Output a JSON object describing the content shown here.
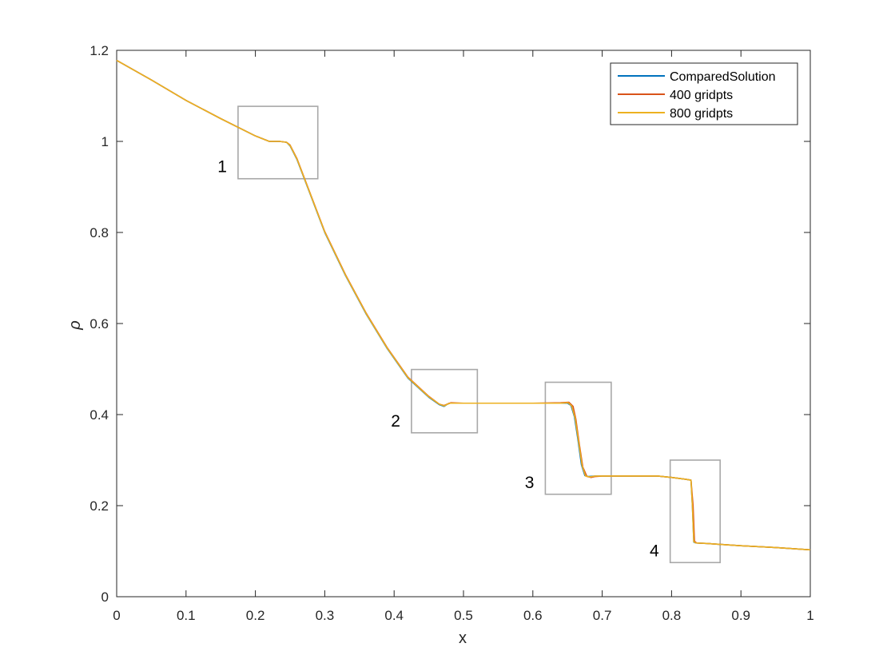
{
  "chart_data": {
    "type": "line",
    "title": "",
    "xlabel": "x",
    "ylabel": "ρ",
    "xlim": [
      0,
      1
    ],
    "ylim": [
      0,
      1.2
    ],
    "xticks": [
      0,
      0.1,
      0.2,
      0.3,
      0.4,
      0.5,
      0.6,
      0.7,
      0.8,
      0.9,
      1
    ],
    "xtick_labels": [
      "0",
      "0.1",
      "0.2",
      "0.3",
      "0.4",
      "0.5",
      "0.6",
      "0.7",
      "0.8",
      "0.9",
      "1"
    ],
    "yticks": [
      0,
      0.2,
      0.4,
      0.6,
      0.8,
      1,
      1.2
    ],
    "ytick_labels": [
      "0",
      "0.2",
      "0.4",
      "0.6",
      "0.8",
      "1",
      "1.2"
    ],
    "grid": false,
    "legend_position": "top-right",
    "series": [
      {
        "name": "ComparedSolution",
        "color": "#0072bd",
        "x": [
          0,
          0.05,
          0.1,
          0.15,
          0.2,
          0.22,
          0.235,
          0.245,
          0.25,
          0.26,
          0.28,
          0.3,
          0.33,
          0.36,
          0.39,
          0.42,
          0.45,
          0.465,
          0.472,
          0.476,
          0.48,
          0.5,
          0.55,
          0.6,
          0.64,
          0.65,
          0.655,
          0.66,
          0.665,
          0.67,
          0.675,
          0.68,
          0.69,
          0.7,
          0.75,
          0.78,
          0.8,
          0.82,
          0.828,
          0.83,
          0.832,
          0.835,
          0.85,
          0.9,
          0.95,
          1
        ],
        "y": [
          1.178,
          1.135,
          1.09,
          1.05,
          1.012,
          1.0,
          1.0,
          0.998,
          0.99,
          0.96,
          0.88,
          0.8,
          0.705,
          0.62,
          0.545,
          0.48,
          0.438,
          0.422,
          0.418,
          0.422,
          0.425,
          0.425,
          0.425,
          0.425,
          0.425,
          0.425,
          0.42,
          0.395,
          0.345,
          0.29,
          0.266,
          0.264,
          0.265,
          0.265,
          0.265,
          0.265,
          0.262,
          0.258,
          0.256,
          0.2,
          0.12,
          0.118,
          0.117,
          0.112,
          0.108,
          0.103
        ]
      },
      {
        "name": "400 gridpts",
        "color": "#d95319",
        "x": [
          0,
          0.05,
          0.1,
          0.15,
          0.2,
          0.22,
          0.235,
          0.245,
          0.25,
          0.26,
          0.28,
          0.3,
          0.33,
          0.36,
          0.39,
          0.42,
          0.45,
          0.465,
          0.472,
          0.478,
          0.482,
          0.5,
          0.55,
          0.6,
          0.64,
          0.652,
          0.658,
          0.662,
          0.667,
          0.672,
          0.678,
          0.684,
          0.69,
          0.7,
          0.75,
          0.78,
          0.8,
          0.82,
          0.828,
          0.831,
          0.833,
          0.836,
          0.85,
          0.9,
          0.95,
          1
        ],
        "y": [
          1.178,
          1.135,
          1.09,
          1.05,
          1.012,
          1.0,
          1.0,
          0.998,
          0.992,
          0.962,
          0.882,
          0.802,
          0.707,
          0.622,
          0.547,
          0.482,
          0.44,
          0.423,
          0.42,
          0.424,
          0.426,
          0.425,
          0.425,
          0.425,
          0.426,
          0.427,
          0.418,
          0.39,
          0.335,
          0.285,
          0.264,
          0.262,
          0.264,
          0.265,
          0.265,
          0.265,
          0.262,
          0.258,
          0.256,
          0.2,
          0.122,
          0.118,
          0.117,
          0.112,
          0.108,
          0.103
        ]
      },
      {
        "name": "800 gridpts",
        "color": "#edb120",
        "x": [
          0,
          0.05,
          0.1,
          0.15,
          0.2,
          0.22,
          0.235,
          0.245,
          0.25,
          0.26,
          0.28,
          0.3,
          0.33,
          0.36,
          0.39,
          0.42,
          0.45,
          0.465,
          0.472,
          0.477,
          0.481,
          0.5,
          0.55,
          0.6,
          0.64,
          0.651,
          0.656,
          0.661,
          0.666,
          0.671,
          0.676,
          0.682,
          0.69,
          0.7,
          0.75,
          0.78,
          0.8,
          0.82,
          0.828,
          0.83,
          0.832,
          0.835,
          0.85,
          0.9,
          0.95,
          1
        ],
        "y": [
          1.178,
          1.135,
          1.09,
          1.05,
          1.012,
          1.0,
          1.0,
          0.998,
          0.991,
          0.961,
          0.881,
          0.801,
          0.706,
          0.621,
          0.546,
          0.481,
          0.439,
          0.423,
          0.419,
          0.423,
          0.425,
          0.425,
          0.425,
          0.425,
          0.425,
          0.426,
          0.419,
          0.392,
          0.34,
          0.288,
          0.265,
          0.263,
          0.265,
          0.265,
          0.265,
          0.265,
          0.262,
          0.258,
          0.256,
          0.2,
          0.121,
          0.118,
          0.117,
          0.112,
          0.108,
          0.103
        ]
      }
    ],
    "annotations": [
      {
        "label": "1",
        "x0": 0.175,
        "x1": 0.29,
        "y0": 0.918,
        "y1": 1.077,
        "color": "#a8a8a8"
      },
      {
        "label": "2",
        "x0": 0.425,
        "x1": 0.52,
        "y0": 0.36,
        "y1": 0.499,
        "color": "#a8a8a8"
      },
      {
        "label": "3",
        "x0": 0.618,
        "x1": 0.713,
        "y0": 0.225,
        "y1": 0.471,
        "color": "#a8a8a8"
      },
      {
        "label": "4",
        "x0": 0.798,
        "x1": 0.87,
        "y0": 0.075,
        "y1": 0.3,
        "color": "#a8a8a8"
      }
    ]
  }
}
